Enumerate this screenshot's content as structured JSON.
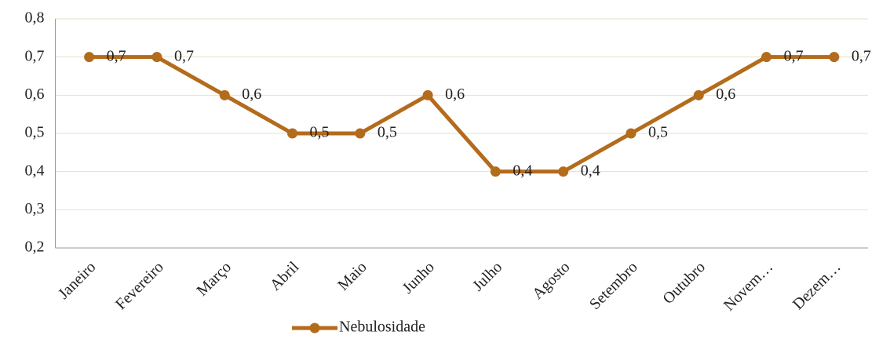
{
  "chart_data": {
    "type": "line",
    "categories": [
      "Janeiro",
      "Fevereiro",
      "Março",
      "Abril",
      "Maio",
      "Junho",
      "Julho",
      "Agosto",
      "Setembro",
      "Outubro",
      "Novem…",
      "Dezem…"
    ],
    "series": [
      {
        "name": "Nebulosidade",
        "color": "#b36b1c",
        "values": [
          0.7,
          0.7,
          0.6,
          0.5,
          0.5,
          0.6,
          0.4,
          0.4,
          0.5,
          0.6,
          0.7,
          0.7
        ],
        "value_labels": [
          "0,7",
          "0,7",
          "0,6",
          "0,5",
          "0,5",
          "0,6",
          "0,4",
          "0,4",
          "0,5",
          "0,6",
          "0,7",
          "0,7"
        ]
      }
    ],
    "ylim": [
      0.2,
      0.8
    ],
    "yticks": [
      {
        "value": 0.2,
        "label": "0,2"
      },
      {
        "value": 0.3,
        "label": "0,3"
      },
      {
        "value": 0.4,
        "label": "0,4"
      },
      {
        "value": 0.5,
        "label": "0,5"
      },
      {
        "value": 0.6,
        "label": "0,6"
      },
      {
        "value": 0.7,
        "label": "0,7"
      },
      {
        "value": 0.8,
        "label": "0,8"
      }
    ],
    "grid": true,
    "legend": "bottom"
  }
}
